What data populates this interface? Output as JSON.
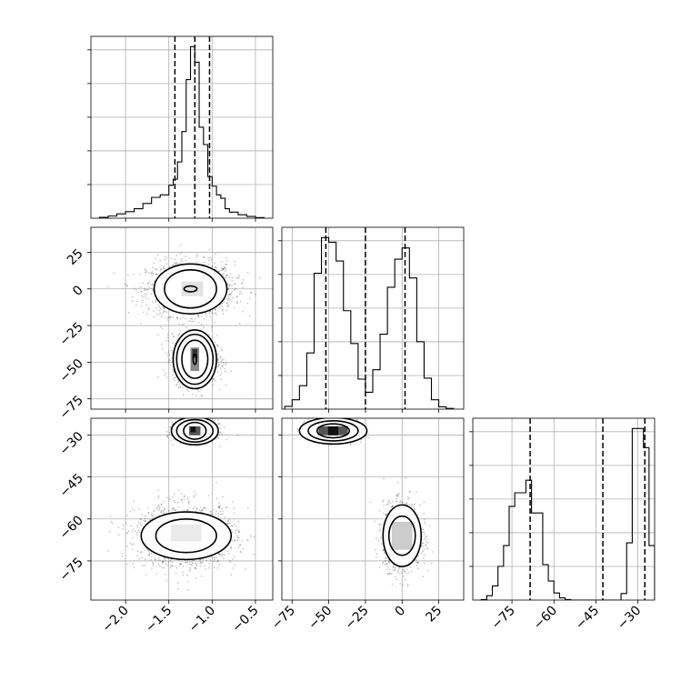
{
  "chart_data": {
    "type": "corner",
    "grid": true,
    "parameters": [
      {
        "range": [
          -2.4,
          -0.3
        ],
        "ticks": [
          -2.0,
          -1.5,
          -1.0,
          -0.5
        ],
        "tick_labels": [
          "−2.0",
          "−1.5",
          "−1.0",
          "−0.5"
        ],
        "quantiles": [
          -1.43,
          -1.2,
          -1.03
        ],
        "histogram": {
          "edges": [
            -2.3,
            -2.2,
            -2.1,
            -2.0,
            -1.9,
            -1.8,
            -1.7,
            -1.6,
            -1.5,
            -1.45,
            -1.4,
            -1.35,
            -1.3,
            -1.25,
            -1.2,
            -1.15,
            -1.1,
            -1.05,
            -1.0,
            -0.95,
            -0.9,
            -0.85,
            -0.8,
            -0.7,
            -0.6,
            -0.5,
            -0.4
          ],
          "values": [
            10,
            25,
            50,
            75,
            110,
            170,
            240,
            270,
            380,
            450,
            650,
            1000,
            1600,
            1980,
            1800,
            1050,
            850,
            480,
            370,
            270,
            230,
            110,
            70,
            40,
            20,
            8
          ]
        }
      },
      {
        "range": [
          -82,
          42
        ],
        "ticks": [
          -75,
          -50,
          -25,
          0,
          25
        ],
        "tick_labels": [
          "−75",
          "−50",
          "−25",
          "0",
          "25"
        ],
        "quantiles": [
          -52,
          -25,
          2
        ],
        "histogram": {
          "edges": [
            -80,
            -75,
            -70,
            -65,
            -60,
            -55,
            -50,
            -45,
            -40,
            -35,
            -30,
            -25,
            -20,
            -15,
            -10,
            -5,
            0,
            5,
            10,
            15,
            20,
            25,
            30,
            35
          ],
          "values": [
            30,
            100,
            250,
            600,
            1450,
            1830,
            1780,
            1580,
            1050,
            700,
            320,
            180,
            420,
            800,
            1300,
            1600,
            1720,
            1400,
            720,
            330,
            100,
            25,
            8
          ]
        }
      },
      {
        "range": [
          -89,
          -24
        ],
        "ticks": [
          -75,
          -60,
          -45,
          -30
        ],
        "tick_labels": [
          "−75",
          "−60",
          "−45",
          "−30"
        ],
        "quantiles": [
          -68.5,
          -42.5,
          -27.5
        ],
        "histogram": {
          "edges": [
            -86,
            -84,
            -82,
            -80,
            -78,
            -76,
            -74,
            -72,
            -70,
            -68,
            -66,
            -64,
            -62,
            -60,
            -58,
            -56,
            -54,
            -52,
            -50,
            -48,
            -46,
            -44,
            -42,
            -40,
            -38,
            -36,
            -34,
            -32,
            -30,
            -28,
            -26,
            -24
          ],
          "values": [
            10,
            80,
            260,
            620,
            1000,
            1720,
            1970,
            1970,
            2200,
            1600,
            1600,
            650,
            350,
            130,
            40,
            10,
            0,
            0,
            0,
            0,
            0,
            0,
            0,
            0,
            0,
            120,
            1050,
            3150,
            3150,
            2800,
            1000
          ]
        }
      }
    ],
    "panels_2d": [
      {
        "x_param": 0,
        "y_param": 1,
        "clusters": [
          {
            "center": [
              -1.25,
              0
            ],
            "sd": [
              0.22,
              8
            ],
            "contours": [
              [
                0.3,
                13
              ],
              [
                0.42,
                17
              ],
              [
                0.075,
                2
              ]
            ]
          },
          {
            "center": [
              -1.2,
              -48
            ],
            "sd": [
              0.11,
              7
            ],
            "contours": [
              [
                0.15,
                13
              ],
              [
                0.21,
                17
              ],
              [
                0.25,
                20
              ],
              [
                0.02,
                3.5
              ]
            ]
          }
        ],
        "dense_cells": [
          {
            "center": [
              -1.2,
              -48
            ],
            "size": [
              0.1,
              16
            ],
            "color": "#888888"
          },
          {
            "center": [
              -1.2,
              -44
            ],
            "size": [
              0.06,
              6
            ],
            "color": "#333333"
          },
          {
            "center": [
              -1.23,
              0
            ],
            "size": [
              0.25,
              10
            ],
            "color": "#e2e2e2"
          }
        ]
      },
      {
        "x_param": 0,
        "y_param": 2,
        "clusters": [
          {
            "center": [
              -1.2,
              -28.5
            ],
            "sd": [
              0.1,
              1.6
            ],
            "contours": [
              [
                0.13,
                3
              ],
              [
                0.21,
                4
              ],
              [
                0.27,
                5
              ]
            ]
          },
          {
            "center": [
              -1.3,
              -66
            ],
            "sd": [
              0.25,
              5
            ],
            "contours": [
              [
                0.35,
                6
              ],
              [
                0.52,
                8.5
              ]
            ]
          }
        ],
        "dense_cells": [
          {
            "center": [
              -1.2,
              -28.5
            ],
            "size": [
              0.13,
              3.2
            ],
            "color": "#555555"
          },
          {
            "center": [
              -1.22,
              -28
            ],
            "size": [
              0.06,
              2
            ],
            "color": "#111111"
          },
          {
            "center": [
              -1.3,
              -65
            ],
            "size": [
              0.35,
              6
            ],
            "color": "#eaeaea"
          }
        ]
      },
      {
        "x_param": 1,
        "y_param": 2,
        "clusters": [
          {
            "center": [
              -47,
              -28.5
            ],
            "sd": [
              7,
              1.6
            ],
            "contours": [
              [
                11,
                2.5
              ],
              [
                17,
                3.6
              ],
              [
                23,
                4.7
              ]
            ]
          },
          {
            "center": [
              0,
              -66
            ],
            "sd": [
              5.5,
              5
            ],
            "contours": [
              [
                9,
                7
              ],
              [
                13,
                11
              ]
            ]
          }
        ],
        "dense_cells": [
          {
            "center": [
              -47,
              -28.5
            ],
            "size": [
              20,
              3.2
            ],
            "color": "#555555"
          },
          {
            "center": [
              -47,
              -28.5
            ],
            "size": [
              7,
              3.2
            ],
            "color": "#111111"
          },
          {
            "center": [
              0,
              -66
            ],
            "size": [
              14,
              10
            ],
            "color": "#cccccc"
          }
        ]
      }
    ]
  }
}
